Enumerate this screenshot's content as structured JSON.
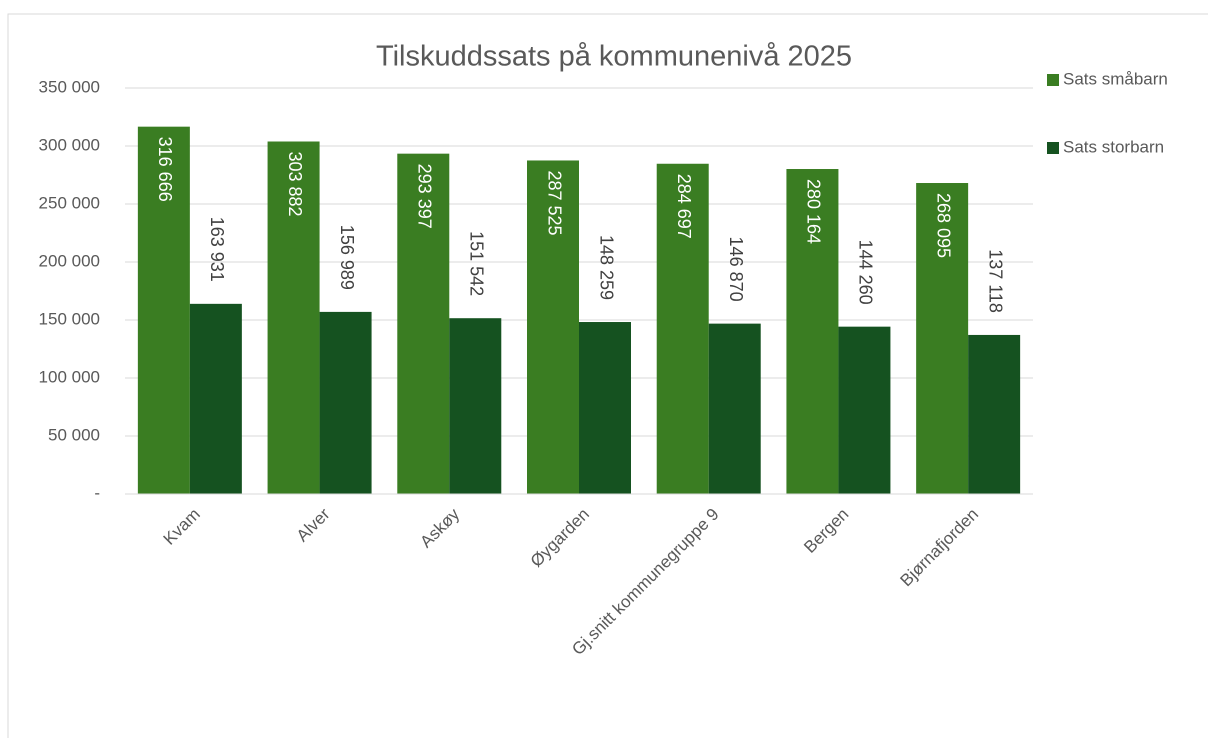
{
  "chart_data": {
    "type": "bar",
    "title": "Tilskuddssats på kommunenivå 2025",
    "categories": [
      "Kvam",
      "Alver",
      "Askøy",
      "Øygarden",
      "Gj.snitt kommunegruppe 9",
      "Bergen",
      "Bjørnafjorden"
    ],
    "series": [
      {
        "name": "Sats småbarn",
        "color": "#3a7d22",
        "values": [
          316666,
          303882,
          293397,
          287525,
          284697,
          280164,
          268095
        ],
        "value_labels": [
          "316 666",
          "303 882",
          "293 397",
          "287 525",
          "284 697",
          "280 164",
          "268 095"
        ]
      },
      {
        "name": "Sats storbarn",
        "color": "#155220",
        "values": [
          163931,
          156989,
          151542,
          148259,
          146870,
          144260,
          137118
        ],
        "value_labels": [
          "163 931",
          "156 989",
          "151 542",
          "148 259",
          "146 870",
          "144 260",
          "137 118"
        ]
      }
    ],
    "ylim": [
      0,
      350000
    ],
    "yticks": [
      {
        "value": 0,
        "label": "-"
      },
      {
        "value": 50000,
        "label": "50 000"
      },
      {
        "value": 100000,
        "label": "100 000"
      },
      {
        "value": 150000,
        "label": "150 000"
      },
      {
        "value": 200000,
        "label": "200 000"
      },
      {
        "value": 250000,
        "label": "250 000"
      },
      {
        "value": 300000,
        "label": "300 000"
      },
      {
        "value": 350000,
        "label": "350 000"
      }
    ],
    "grid": true,
    "legend": "right"
  }
}
